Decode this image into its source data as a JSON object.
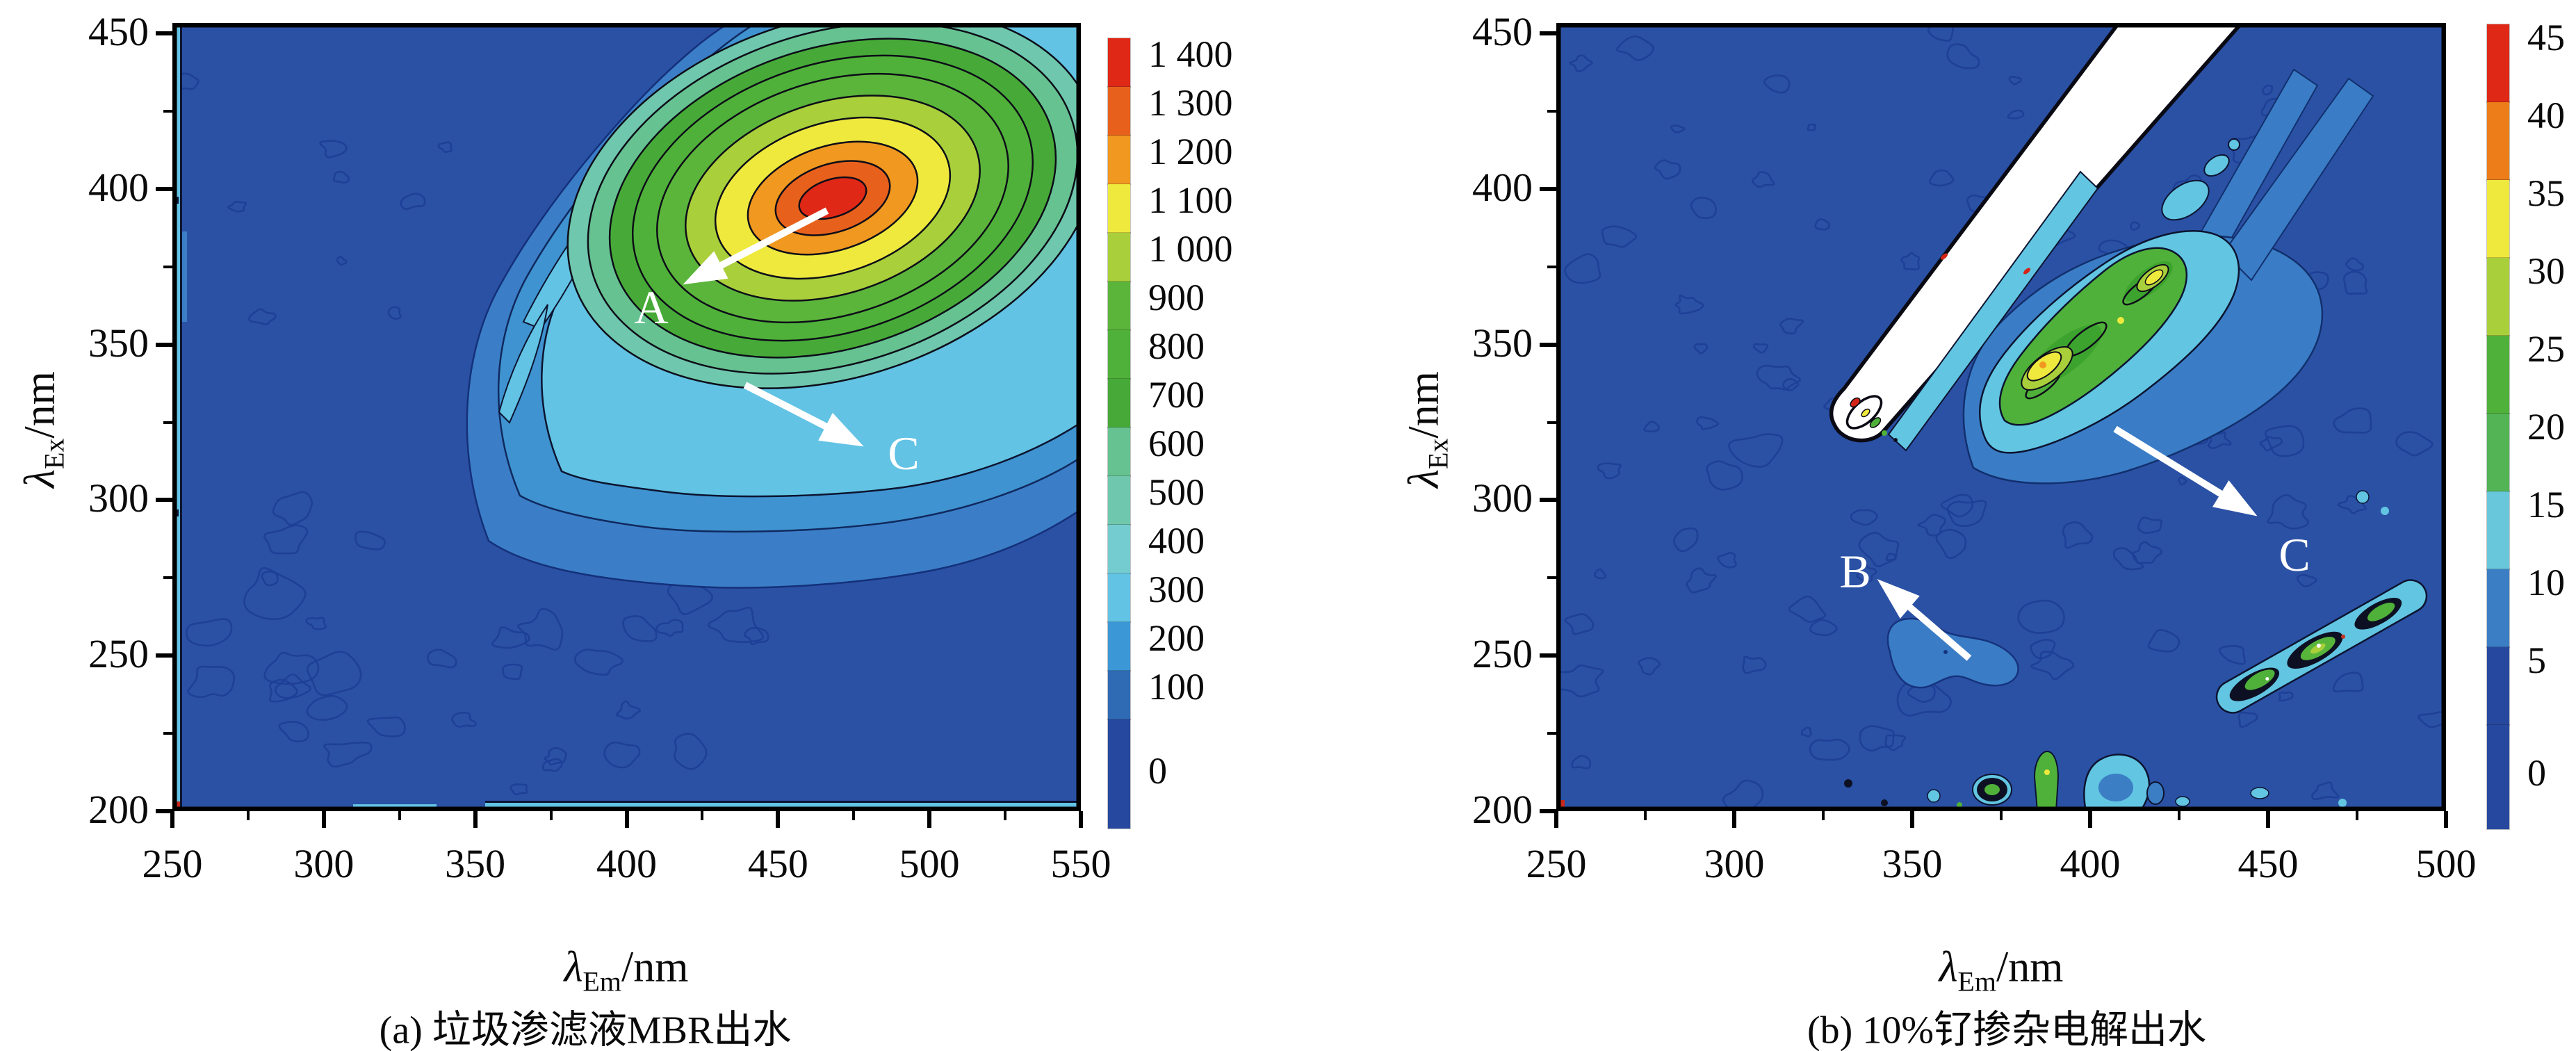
{
  "figure": {
    "panels": [
      {
        "caption": "(a) 垃圾渗滤液MBR出水",
        "x_axis": {
          "lambda": "λ",
          "sub": "Em",
          "suffix": "/nm",
          "ticks": [
            "250",
            "300",
            "350",
            "400",
            "450",
            "500",
            "550"
          ]
        },
        "y_axis": {
          "lambda": "λ",
          "sub": "Ex",
          "suffix": "/nm",
          "ticks": [
            "450",
            "400",
            "350",
            "300",
            "250",
            "200"
          ]
        },
        "colorbar": {
          "tick_labels": [
            "1 400",
            "1 300",
            "1 200",
            "1 100",
            "1 000",
            "900",
            "800",
            "700",
            "600",
            "500",
            "400",
            "300",
            "200",
            "100",
            "0"
          ],
          "colors": [
            "#e02817",
            "#e8611c",
            "#f0981f",
            "#efe93e",
            "#a9cf3b",
            "#5bb53b",
            "#4fb139",
            "#47aa38",
            "#66c291",
            "#6fc7ad",
            "#74ccd0",
            "#62c3e4",
            "#3b97d6",
            "#2f6ab5",
            "#27489f"
          ]
        },
        "annotations": [
          {
            "label": "A"
          },
          {
            "label": "C"
          }
        ]
      },
      {
        "caption": "(b) 10%钌掺杂电解出水",
        "x_axis": {
          "lambda": "λ",
          "sub": "Em",
          "suffix": "/nm",
          "ticks": [
            "250",
            "300",
            "350",
            "400",
            "450",
            "500"
          ]
        },
        "y_axis": {
          "lambda": "λ",
          "sub": "Ex",
          "suffix": "/nm",
          "ticks": [
            "450",
            "400",
            "350",
            "300",
            "250",
            "200"
          ]
        },
        "colorbar": {
          "tick_labels": [
            "45",
            "40",
            "35",
            "30",
            "25",
            "20",
            "15",
            "10",
            "5",
            "0"
          ],
          "colors": [
            "#e02817",
            "#ec7d18",
            "#efe93e",
            "#a9cf3b",
            "#4fb139",
            "#52b455",
            "#68c7db",
            "#3b7ec4",
            "#27489f",
            "#27489f"
          ]
        },
        "annotations": [
          {
            "label": "B"
          },
          {
            "label": "C"
          }
        ]
      }
    ]
  },
  "chart_data": [
    {
      "type": "heatmap",
      "title": "(a) 垃圾渗滤液MBR出水",
      "xlabel": "λEm/nm",
      "ylabel": "λEx/nm",
      "x_range": [
        250,
        550
      ],
      "y_range": [
        200,
        450
      ],
      "x_ticks": [
        250,
        300,
        350,
        400,
        450,
        500,
        550
      ],
      "y_ticks": [
        200,
        250,
        300,
        350,
        400,
        450
      ],
      "colorbar": {
        "min": 0,
        "max": 1400,
        "step": 100,
        "position": "right"
      },
      "peaks": [
        {
          "label": "A",
          "lambda_em": 470,
          "lambda_ex": 397,
          "intensity": 1400,
          "description": "strong humic-like fluorescence peak (red core, concentric contours)"
        },
        {
          "label": "C",
          "lambda_em": 480,
          "lambda_ex": 310,
          "intensity": 200,
          "description": "weak light-blue shoulder region below main peak"
        }
      ],
      "background_intensity": 50,
      "grid": false,
      "notes": "flat dark-blue background with faint noise contours in lower-left; thin cyan stripe along left edge"
    },
    {
      "type": "heatmap",
      "title": "(b) 10%钌掺杂电解出水",
      "xlabel": "λEm/nm",
      "ylabel": "λEx/nm",
      "x_range": [
        250,
        500
      ],
      "y_range": [
        200,
        450
      ],
      "x_ticks": [
        250,
        300,
        350,
        400,
        450,
        500
      ],
      "y_ticks": [
        200,
        250,
        300,
        350,
        400,
        450
      ],
      "colorbar": {
        "min": 0,
        "max": 45,
        "step": 5,
        "position": "right"
      },
      "peaks": [
        {
          "label": "C",
          "lambda_em": 385,
          "lambda_ex": 352,
          "intensity": 35,
          "description": "elongated diagonal green peak with yellow core"
        },
        {
          "label": "B",
          "lambda_em": 360,
          "lambda_ex": 250,
          "intensity": 8,
          "description": "weak light-blue blob"
        }
      ],
      "background_intensity": 3,
      "grid": false,
      "notes": "white first-order Rayleigh scatter band along λEm≈λEx (saturated, >45); second-order scatter streak near λEm 430–490, λEx 235–270; dense small noise contours everywhere"
    }
  ]
}
